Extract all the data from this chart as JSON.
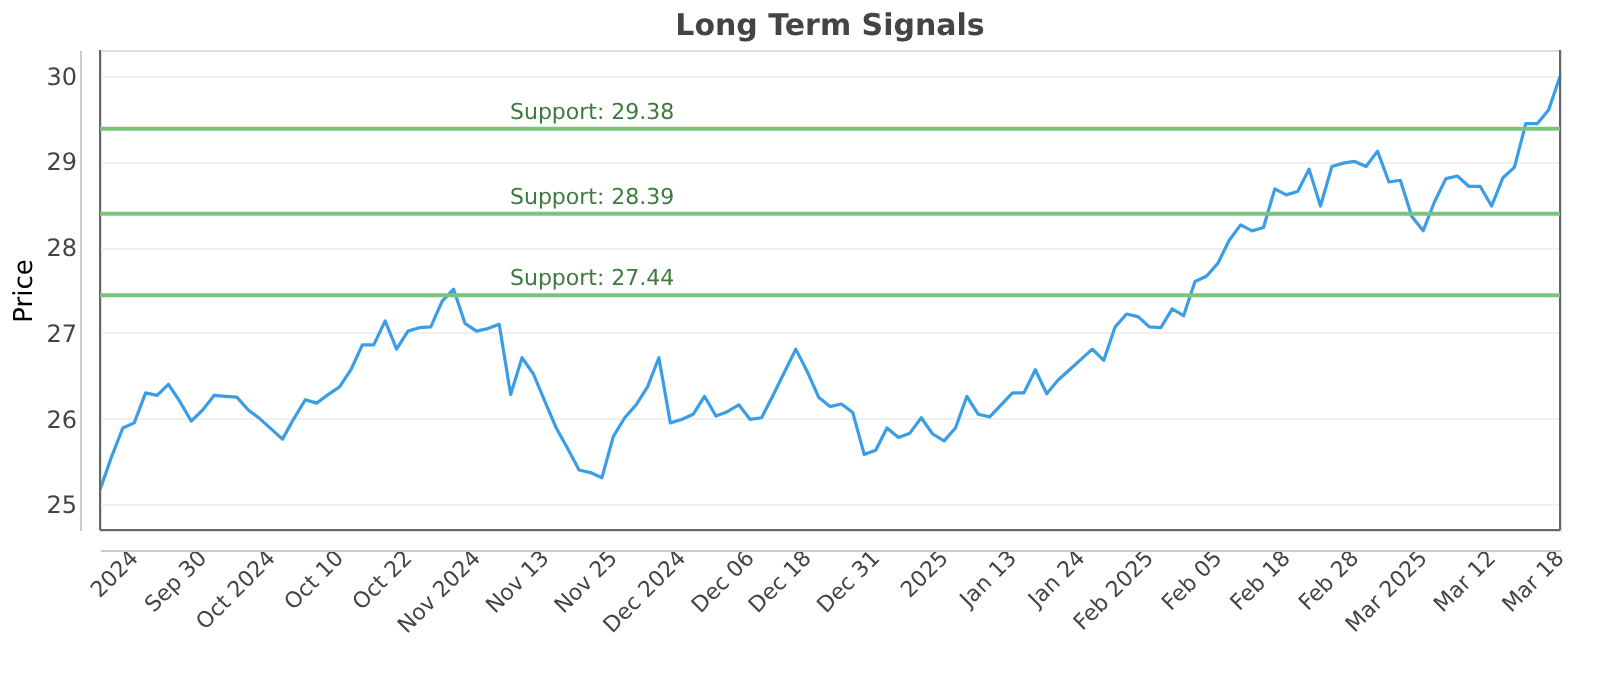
{
  "chart_data": {
    "type": "line",
    "title": "Long Term Signals",
    "ylabel": "Price",
    "categories": [
      null,
      null,
      null,
      "2024",
      null,
      null,
      null,
      null,
      null,
      "Sep 30",
      null,
      null,
      null,
      null,
      null,
      "Oct 2024",
      null,
      null,
      null,
      null,
      null,
      "Oct 10",
      null,
      null,
      null,
      null,
      null,
      "Oct 22",
      null,
      null,
      null,
      null,
      null,
      "Nov 2024",
      null,
      null,
      null,
      null,
      null,
      "Nov 13",
      null,
      null,
      null,
      null,
      null,
      "Nov 25",
      null,
      null,
      null,
      null,
      null,
      "Dec 2024",
      null,
      null,
      null,
      null,
      null,
      "Dec 06",
      null,
      null,
      null,
      null,
      "Dec 18",
      null,
      null,
      null,
      null,
      null,
      "Dec 31",
      null,
      null,
      null,
      null,
      null,
      "2025",
      null,
      null,
      null,
      null,
      null,
      "Jan 13",
      null,
      null,
      null,
      null,
      null,
      "Jan 24",
      null,
      null,
      null,
      null,
      null,
      "Feb 2025",
      null,
      null,
      null,
      null,
      null,
      "Feb 05",
      null,
      null,
      null,
      null,
      null,
      "Feb 18",
      null,
      null,
      null,
      null,
      null,
      "Feb 28",
      null,
      null,
      null,
      null,
      null,
      "Mar 2025",
      null,
      null,
      null,
      null,
      null,
      "Mar 12",
      null,
      null,
      null,
      null,
      null,
      "Mar 18"
    ],
    "series": [
      {
        "color": "#3a9ee6",
        "values": [
          25.17,
          25.55,
          25.89,
          25.95,
          26.3,
          26.27,
          26.4,
          26.2,
          25.97,
          26.1,
          26.27,
          26.26,
          26.25,
          26.1,
          26.0,
          25.88,
          25.76,
          26.0,
          26.22,
          26.18,
          26.28,
          26.37,
          26.57,
          26.86,
          26.86,
          27.14,
          26.81,
          27.02,
          27.06,
          27.07,
          27.37,
          27.51,
          27.11,
          27.02,
          27.05,
          27.1,
          26.28,
          26.71,
          26.52,
          26.2,
          25.89,
          25.65,
          25.4,
          25.37,
          25.31,
          25.79,
          26.01,
          26.16,
          26.37,
          26.71,
          25.95,
          25.99,
          26.05,
          26.26,
          26.03,
          26.08,
          26.16,
          25.99,
          26.01,
          26.27,
          26.54,
          26.81,
          26.55,
          26.25,
          26.14,
          26.17,
          26.07,
          25.58,
          25.63,
          25.89,
          25.78,
          25.83,
          26.01,
          25.82,
          25.74,
          25.89,
          26.26,
          26.05,
          26.02,
          26.16,
          26.3,
          26.3,
          26.57,
          26.29,
          26.45,
          26.57,
          26.69,
          26.81,
          26.68,
          27.07,
          27.22,
          27.19,
          27.07,
          27.06,
          27.28,
          27.2,
          27.6,
          27.66,
          27.81,
          28.08,
          28.26,
          28.19,
          28.23,
          28.68,
          28.61,
          28.65,
          28.91,
          28.48,
          28.94,
          28.98,
          29.0,
          28.94,
          29.12,
          28.76,
          28.78,
          28.36,
          28.19,
          28.53,
          28.8,
          28.83,
          28.71,
          28.71,
          28.48,
          28.81,
          28.93,
          29.44,
          29.44,
          29.6,
          29.99
        ]
      }
    ],
    "ylim": [
      24.7,
      30.3
    ],
    "yticks": [
      25,
      26,
      27,
      28,
      29,
      30
    ],
    "grid": "y",
    "marker": "none",
    "line_style": "solid",
    "ref_lines": [
      {
        "axis": "y",
        "value": 29.38,
        "label": "Support: 29.38",
        "color": "#7cc47c"
      },
      {
        "axis": "y",
        "value": 28.39,
        "label": "Support: 28.39",
        "color": "#7cc47c"
      },
      {
        "axis": "y",
        "value": 27.44,
        "label": "Support: 27.44",
        "color": "#7cc47c"
      }
    ]
  }
}
